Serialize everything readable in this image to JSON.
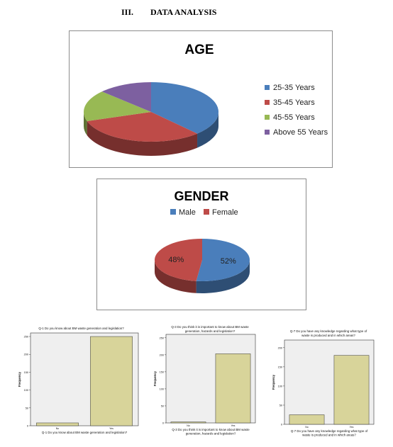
{
  "section": {
    "number": "III.",
    "title": "DATA ANALYSIS"
  },
  "chart_data": [
    {
      "type": "pie",
      "title": "AGE",
      "categories": [
        "25-35 Years",
        "35-45 Years",
        "45-55 Years",
        "Above 55 Years"
      ],
      "values": [
        38,
        32,
        17,
        13
      ],
      "colors": [
        "#4a7ebb",
        "#be4b48",
        "#98b954",
        "#7d60a0"
      ],
      "legend": "right",
      "style": "3d"
    },
    {
      "type": "pie",
      "title": "GENDER",
      "categories": [
        "Male",
        "Female"
      ],
      "values": [
        52,
        48
      ],
      "labels": [
        "52%",
        "48%"
      ],
      "colors": [
        "#4a7ebb",
        "#be4b48"
      ],
      "legend": "top",
      "style": "3d"
    },
    {
      "type": "bar",
      "title": "Q-1 Do you know about BM waste generation and legislation?",
      "xlabel": "Q-1 Do you know about BM waste generation and legislation?",
      "ylabel": "Frequency",
      "categories": [
        "No",
        "Yes"
      ],
      "values": [
        8,
        250
      ],
      "ylim": [
        0,
        260
      ],
      "yticks": [
        "0",
        "50",
        "100",
        "150",
        "200",
        "250"
      ]
    },
    {
      "type": "bar",
      "title": "Q-3 Do you think it is important to know about BM waste generation, hazards and legislation?",
      "xlabel": "Q-3 Do you think it is important to know about BM waste generation, hazards and legislation?",
      "ylabel": "Frequency",
      "categories": [
        "No",
        "Yes"
      ],
      "values": [
        3,
        203
      ],
      "ylim": [
        0,
        260
      ],
      "yticks": [
        "0",
        "50",
        "100",
        "150",
        "200",
        "250"
      ]
    },
    {
      "type": "bar",
      "title": "Q-7 Do you have any knowledge regarding what type of waste is produced and in which areas?",
      "xlabel": "Q-7 Do you have any knowledge regarding what type of waste is produced and in which areas?",
      "ylabel": "Frequency",
      "categories": [
        "No",
        "Yes"
      ],
      "values": [
        25,
        180
      ],
      "ylim": [
        0,
        220
      ],
      "yticks": [
        "0",
        "50",
        "100",
        "150",
        "200"
      ]
    }
  ]
}
